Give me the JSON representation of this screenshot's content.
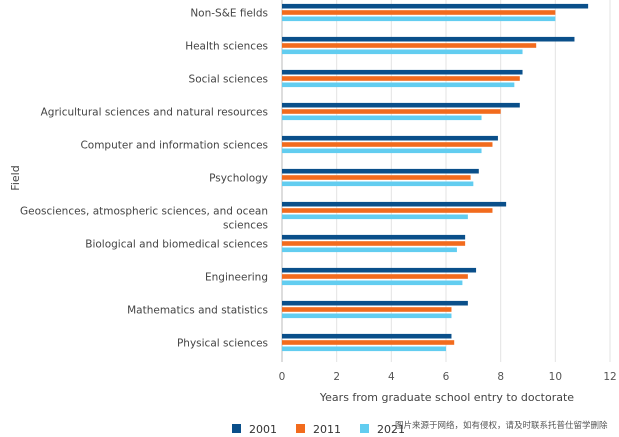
{
  "chart_data": {
    "type": "bar",
    "orientation": "horizontal",
    "title": "",
    "xlabel": "Years from graduate school entry to doctorate",
    "ylabel": "Field",
    "xlim": [
      0,
      12
    ],
    "xticks": [
      0,
      2,
      4,
      6,
      8,
      10,
      12
    ],
    "grid": true,
    "legend_position": "bottom",
    "categories": [
      [
        "Non-S&E fields"
      ],
      [
        "Health sciences"
      ],
      [
        "Social sciences"
      ],
      [
        "Agricultural sciences and natural resources"
      ],
      [
        "Computer and information sciences"
      ],
      [
        "Psychology"
      ],
      [
        "Geosciences, atmospheric sciences, and ocean",
        "sciences"
      ],
      [
        "Biological and biomedical sciences"
      ],
      [
        "Engineering"
      ],
      [
        "Mathematics and statistics"
      ],
      [
        "Physical sciences"
      ]
    ],
    "series": [
      {
        "name": "2001",
        "color": "#0a4f8a",
        "values": [
          11.2,
          10.7,
          8.8,
          8.7,
          7.9,
          7.2,
          8.2,
          6.7,
          7.1,
          6.8,
          6.2
        ]
      },
      {
        "name": "2011",
        "color": "#f26b1d",
        "values": [
          10.0,
          9.3,
          8.7,
          8.0,
          7.7,
          6.9,
          7.7,
          6.7,
          6.8,
          6.2,
          6.3
        ]
      },
      {
        "name": "2021",
        "color": "#62cdf0",
        "values": [
          10.0,
          8.8,
          8.5,
          7.3,
          7.3,
          7.0,
          6.8,
          6.4,
          6.6,
          6.2,
          6.0
        ]
      }
    ]
  },
  "watermark": "图片来源于网络，如有侵权，请及时联系托普仕留学删除"
}
